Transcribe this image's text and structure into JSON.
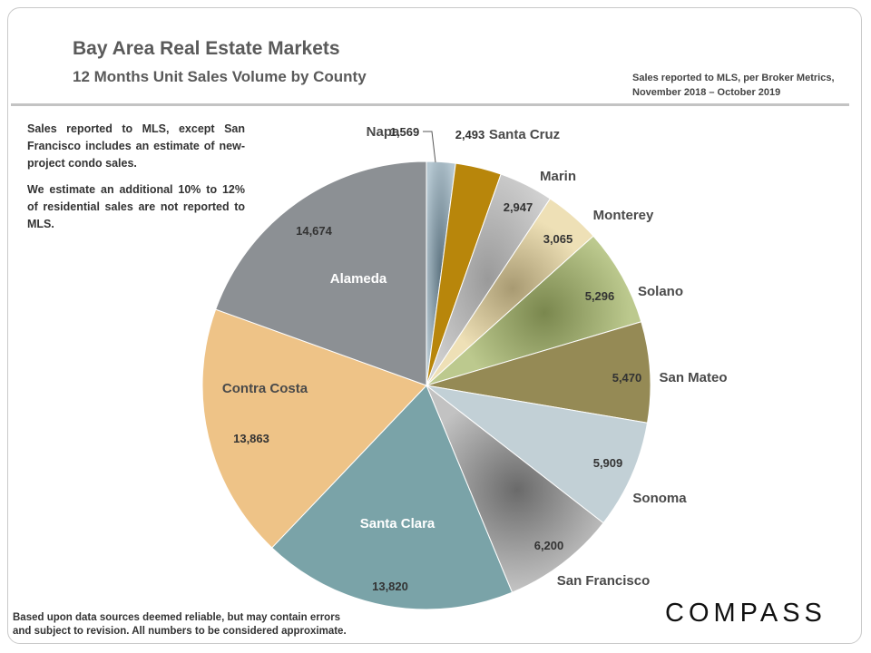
{
  "header": {
    "title": "Bay Area Real Estate Markets",
    "subtitle": "12 Months  Unit Sales Volume by County",
    "source_note": "Sales reported to MLS, per Broker Metrics, November 2018 – October 2019"
  },
  "notes": {
    "note1": "Sales reported to MLS, except San Francisco includes an estimate of new-project condo sales.",
    "note2": "We estimate an additional 10% to 12% of residential sales are not reported to MLS."
  },
  "footer": {
    "disclaimer_line1": "Based upon data sources deemed reliable, but may contain errors",
    "disclaimer_line2": "and  subject to revision. All numbers to be considered approximate.",
    "logo": "COMPASS"
  },
  "chart_data": {
    "type": "pie",
    "start": "12 o'clock, clockwise",
    "slices": [
      {
        "label": "Napa",
        "value": 1569,
        "value_text": "1,569",
        "color": "#9fb4c0"
      },
      {
        "label": "Santa Cruz",
        "value": 2493,
        "value_text": "2,493",
        "color": "#b8860b"
      },
      {
        "label": "Marin",
        "value": 2947,
        "value_text": "2,947",
        "color": "#c4c4c4"
      },
      {
        "label": "Monterey",
        "value": 3065,
        "value_text": "3,065",
        "color": "#e8d6a8"
      },
      {
        "label": "Solano",
        "value": 5296,
        "value_text": "5,296",
        "color": "#a9b67c"
      },
      {
        "label": "San Mateo",
        "value": 5470,
        "value_text": "5,470",
        "color": "#958a55"
      },
      {
        "label": "Sonoma",
        "value": 5909,
        "value_text": "5,909",
        "color": "#c2d0d6"
      },
      {
        "label": "San Francisco",
        "value": 6200,
        "value_text": "6,200",
        "color": "#9a9a9a"
      },
      {
        "label": "Santa Clara",
        "value": 13820,
        "value_text": "13,820",
        "color": "#7aa3a8"
      },
      {
        "label": "Contra Costa",
        "value": 13863,
        "value_text": "13,863",
        "color": "#eec387"
      },
      {
        "label": "Alameda",
        "value": 14674,
        "value_text": "14,674",
        "color": "#8c9094"
      }
    ]
  }
}
